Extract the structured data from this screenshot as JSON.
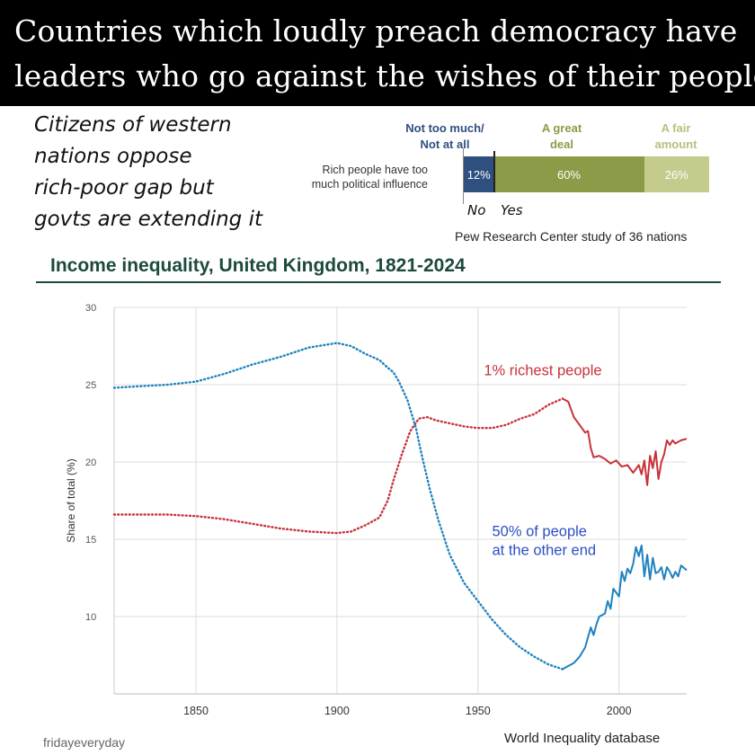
{
  "banner": {
    "line1": "Countries which loudly preach democracy have",
    "line2": "leaders who go against the wishes of their people"
  },
  "claim": {
    "lines": [
      "Citizens of western",
      "nations oppose",
      "rich-poor gap but",
      "govts are extending it"
    ]
  },
  "pew_chart": {
    "headers": {
      "not_too_much": [
        "Not too much/",
        "Not at all"
      ],
      "a_great_deal": [
        "A great",
        "deal"
      ],
      "a_fair_amount": [
        "A fair",
        "amount"
      ]
    },
    "question": [
      "Rich people have too",
      "much political influence"
    ],
    "bars": [
      {
        "name": "Not too much/Not at all",
        "value": 12,
        "label": "12%",
        "color": "#2f4f7f"
      },
      {
        "name": "A great deal",
        "value": 60,
        "label": "60%",
        "color": "#8c9b47"
      },
      {
        "name": "A fair amount",
        "value": 26,
        "label": "26%",
        "color": "#c4cb8c"
      }
    ],
    "header_colors": {
      "not_too_much": "#2f4f7f",
      "a_great_deal": "#8c9b47",
      "a_fair_amount": "#b9bf7a"
    },
    "vote_no": "No",
    "vote_yes": "Yes",
    "source": "Pew Research Center study of 36 nations"
  },
  "chart_data": {
    "type": "line",
    "title": "Income inequality, United Kingdom, 1821-2024",
    "ylabel": "Share of total (%)",
    "xlabel": "",
    "xlim": [
      1821,
      2024
    ],
    "ylim": [
      5,
      30
    ],
    "x_ticks": [
      1850,
      1900,
      1950,
      2000
    ],
    "y_ticks": [
      10,
      15,
      20,
      25,
      30
    ],
    "grid": true,
    "series": [
      {
        "name": "1% richest people",
        "label_lines": [
          "1% richest people"
        ],
        "color": "#c8323a",
        "points": [
          [
            1821,
            16.6
          ],
          [
            1830,
            16.6
          ],
          [
            1840,
            16.6
          ],
          [
            1850,
            16.5
          ],
          [
            1860,
            16.3
          ],
          [
            1870,
            16.0
          ],
          [
            1880,
            15.7
          ],
          [
            1890,
            15.5
          ],
          [
            1900,
            15.4
          ],
          [
            1905,
            15.5
          ],
          [
            1910,
            15.9
          ],
          [
            1915,
            16.4
          ],
          [
            1918,
            17.5
          ],
          [
            1920,
            18.8
          ],
          [
            1923,
            20.5
          ],
          [
            1926,
            22.0
          ],
          [
            1929,
            22.8
          ],
          [
            1932,
            22.9
          ],
          [
            1935,
            22.7
          ],
          [
            1940,
            22.5
          ],
          [
            1945,
            22.3
          ],
          [
            1950,
            22.2
          ],
          [
            1955,
            22.2
          ],
          [
            1960,
            22.4
          ],
          [
            1965,
            22.8
          ],
          [
            1970,
            23.1
          ],
          [
            1975,
            23.7
          ],
          [
            1980,
            24.1
          ],
          [
            1982,
            23.9
          ],
          [
            1984,
            22.9
          ],
          [
            1986,
            22.4
          ],
          [
            1988,
            21.9
          ],
          [
            1989,
            22.0
          ],
          [
            1990,
            20.9
          ],
          [
            1991,
            20.3
          ],
          [
            1993,
            20.4
          ],
          [
            1995,
            20.2
          ],
          [
            1997,
            19.9
          ],
          [
            1999,
            20.1
          ],
          [
            2001,
            19.7
          ],
          [
            2003,
            19.8
          ],
          [
            2005,
            19.3
          ],
          [
            2007,
            19.8
          ],
          [
            2008,
            19.2
          ],
          [
            2009,
            20.1
          ],
          [
            2010,
            18.5
          ],
          [
            2011,
            20.4
          ],
          [
            2012,
            19.6
          ],
          [
            2013,
            20.7
          ],
          [
            2014,
            18.9
          ],
          [
            2015,
            20.0
          ],
          [
            2016,
            20.5
          ],
          [
            2017,
            21.4
          ],
          [
            2018,
            21.1
          ],
          [
            2019,
            21.4
          ],
          [
            2020,
            21.2
          ],
          [
            2022,
            21.4
          ],
          [
            2024,
            21.5
          ]
        ],
        "dotted_until": 1980
      },
      {
        "name": "50% of people at the other end",
        "label_lines": [
          "50% of people",
          "at the other end"
        ],
        "color": "#1f82bf",
        "points": [
          [
            1821,
            24.8
          ],
          [
            1830,
            24.9
          ],
          [
            1840,
            25.0
          ],
          [
            1850,
            25.2
          ],
          [
            1860,
            25.7
          ],
          [
            1870,
            26.3
          ],
          [
            1880,
            26.8
          ],
          [
            1890,
            27.4
          ],
          [
            1900,
            27.7
          ],
          [
            1905,
            27.5
          ],
          [
            1910,
            27.0
          ],
          [
            1915,
            26.6
          ],
          [
            1918,
            26.1
          ],
          [
            1920,
            25.8
          ],
          [
            1922,
            25.2
          ],
          [
            1925,
            24.0
          ],
          [
            1928,
            22.2
          ],
          [
            1930,
            20.5
          ],
          [
            1933,
            18.2
          ],
          [
            1936,
            16.2
          ],
          [
            1940,
            14.0
          ],
          [
            1945,
            12.2
          ],
          [
            1950,
            11.0
          ],
          [
            1955,
            9.8
          ],
          [
            1960,
            8.8
          ],
          [
            1965,
            8.0
          ],
          [
            1970,
            7.4
          ],
          [
            1975,
            6.9
          ],
          [
            1980,
            6.6
          ],
          [
            1982,
            6.8
          ],
          [
            1984,
            7.0
          ],
          [
            1986,
            7.4
          ],
          [
            1988,
            8.0
          ],
          [
            1990,
            9.3
          ],
          [
            1991,
            8.8
          ],
          [
            1992,
            9.5
          ],
          [
            1993,
            10.0
          ],
          [
            1995,
            10.2
          ],
          [
            1996,
            11.0
          ],
          [
            1997,
            10.5
          ],
          [
            1998,
            11.8
          ],
          [
            2000,
            11.3
          ],
          [
            2001,
            12.9
          ],
          [
            2002,
            12.3
          ],
          [
            2003,
            13.1
          ],
          [
            2004,
            12.8
          ],
          [
            2005,
            13.4
          ],
          [
            2006,
            14.5
          ],
          [
            2007,
            13.9
          ],
          [
            2008,
            14.6
          ],
          [
            2009,
            12.6
          ],
          [
            2010,
            14.0
          ],
          [
            2011,
            12.4
          ],
          [
            2012,
            13.8
          ],
          [
            2013,
            12.8
          ],
          [
            2014,
            12.9
          ],
          [
            2015,
            13.2
          ],
          [
            2016,
            12.4
          ],
          [
            2017,
            13.2
          ],
          [
            2018,
            12.9
          ],
          [
            2019,
            12.5
          ],
          [
            2020,
            12.9
          ],
          [
            2021,
            12.6
          ],
          [
            2022,
            13.3
          ],
          [
            2024,
            13.0
          ]
        ],
        "dotted_until": 1980
      }
    ]
  },
  "credit": "fridayeveryday",
  "source": "World Inequality database"
}
